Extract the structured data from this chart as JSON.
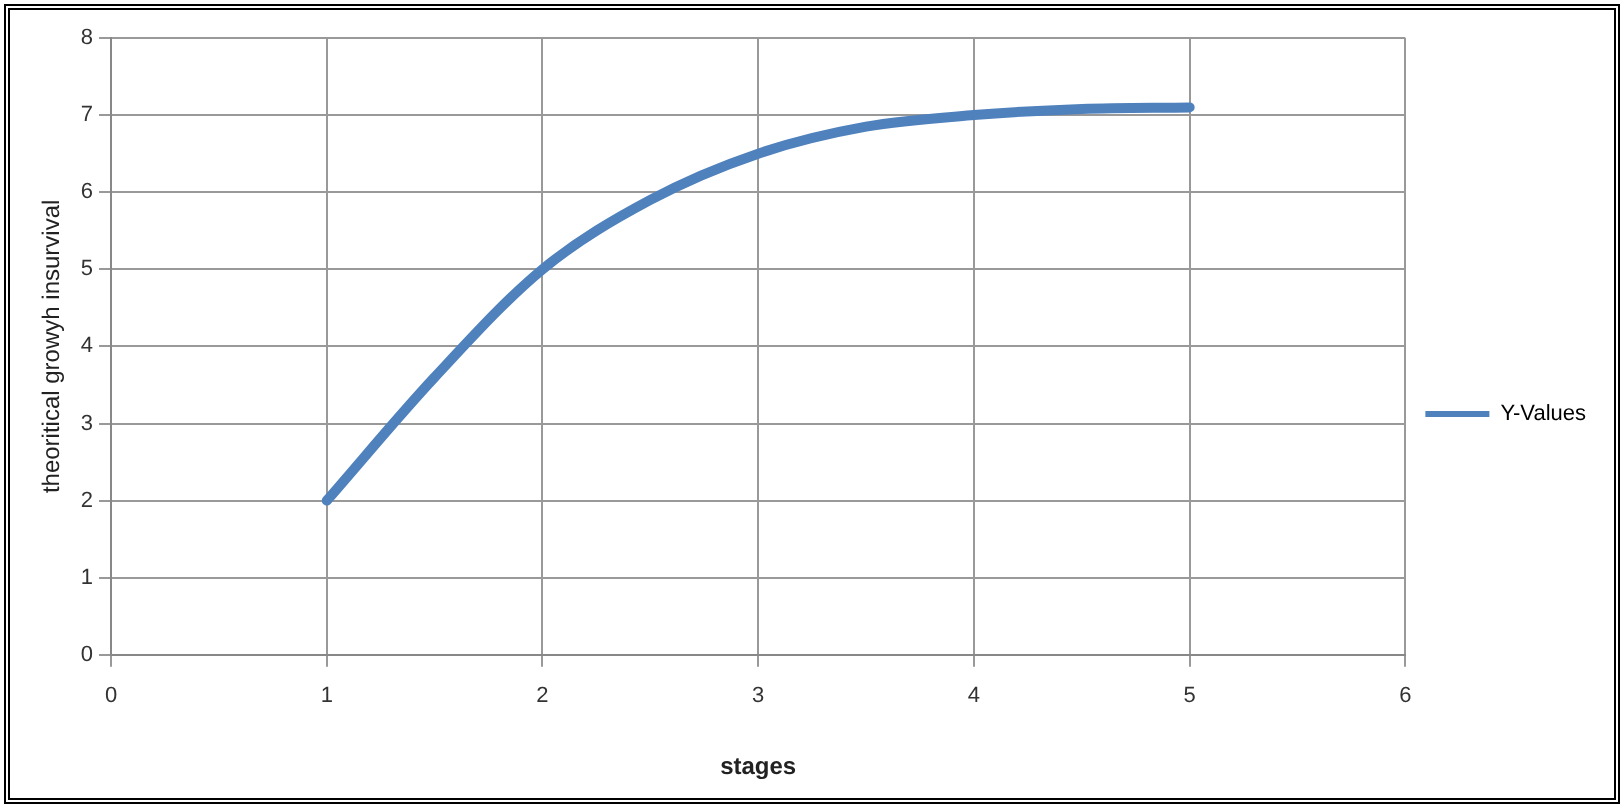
{
  "chart_data": {
    "type": "line",
    "xlabel": "stages",
    "ylabel": "theoritical growyh insurvival",
    "x": [
      1,
      1.5,
      2,
      2.5,
      3,
      3.5,
      4,
      4.5,
      5
    ],
    "series": [
      {
        "name": "Y-Values",
        "color": "#4f81bd",
        "values": [
          2,
          3.6,
          5,
          5.9,
          6.5,
          6.85,
          7,
          7.08,
          7.1
        ]
      }
    ],
    "xlim": [
      0,
      6
    ],
    "xticks": [
      0,
      1,
      2,
      3,
      4,
      5,
      6
    ],
    "ylim": [
      0,
      8
    ],
    "yticks": [
      0,
      1,
      2,
      3,
      4,
      5,
      6,
      7,
      8
    ],
    "grid": true,
    "legend": "right",
    "marker": "none",
    "line_style": "solid"
  }
}
